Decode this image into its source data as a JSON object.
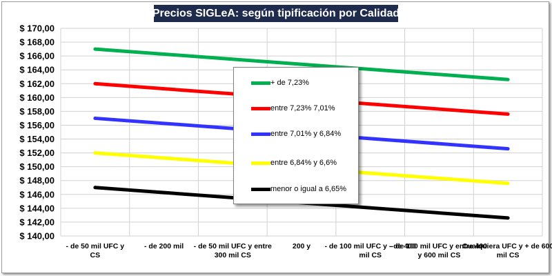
{
  "chart_data": {
    "type": "line",
    "title": "Precios SIGLeA: según tipificación por Calidad",
    "xlabel": "",
    "ylabel": "",
    "ylim": [
      140,
      170
    ],
    "y_step": 2,
    "y_tick_labels": [
      "$ 140,00",
      "$ 142,00",
      "$ 144,00",
      "$ 146,00",
      "$ 148,00",
      "$ 150,00",
      "$ 152,00",
      "$ 154,00",
      "$ 156,00",
      "$ 158,00",
      "$ 160,00",
      "$ 162,00",
      "$ 164,00",
      "$ 166,00",
      "$ 168,00",
      "$ 170,00"
    ],
    "grid": true,
    "legend_position": "center",
    "categories": [
      [
        "- de 50 mil UFC y",
        "CS"
      ],
      [
        "- de 200 mil",
        ""
      ],
      [
        "- de 50 mil UFC y entre",
        "300 mil CS"
      ],
      [
        "200 y",
        ""
      ],
      [
        "- de 100 mil UFC y - de 400",
        "mil CS"
      ],
      [
        "- de 100 mil UFC y entre  400",
        "y 600 mil CS"
      ],
      [
        "Cualquiera UFC y + de 600",
        "mil CS"
      ]
    ],
    "line_start_index": 0.5,
    "line_end_index": 6.5,
    "series": [
      {
        "name": "+ de 7,23%",
        "color": "#00b050",
        "start": 167.0,
        "end": 162.6
      },
      {
        "name": "entre 7,23% 7,01%",
        "color": "#ff0000",
        "start": 162.0,
        "end": 157.6
      },
      {
        "name": "entre 7,01% y 6,84%",
        "color": "#3333ff",
        "start": 157.0,
        "end": 152.6
      },
      {
        "name": "entre 6,84% y 6,6%",
        "color": "#ffff00",
        "start": 152.0,
        "end": 147.6
      },
      {
        "name": "menor o igual a 6,65%",
        "color": "#000000",
        "start": 147.0,
        "end": 142.6
      }
    ]
  }
}
